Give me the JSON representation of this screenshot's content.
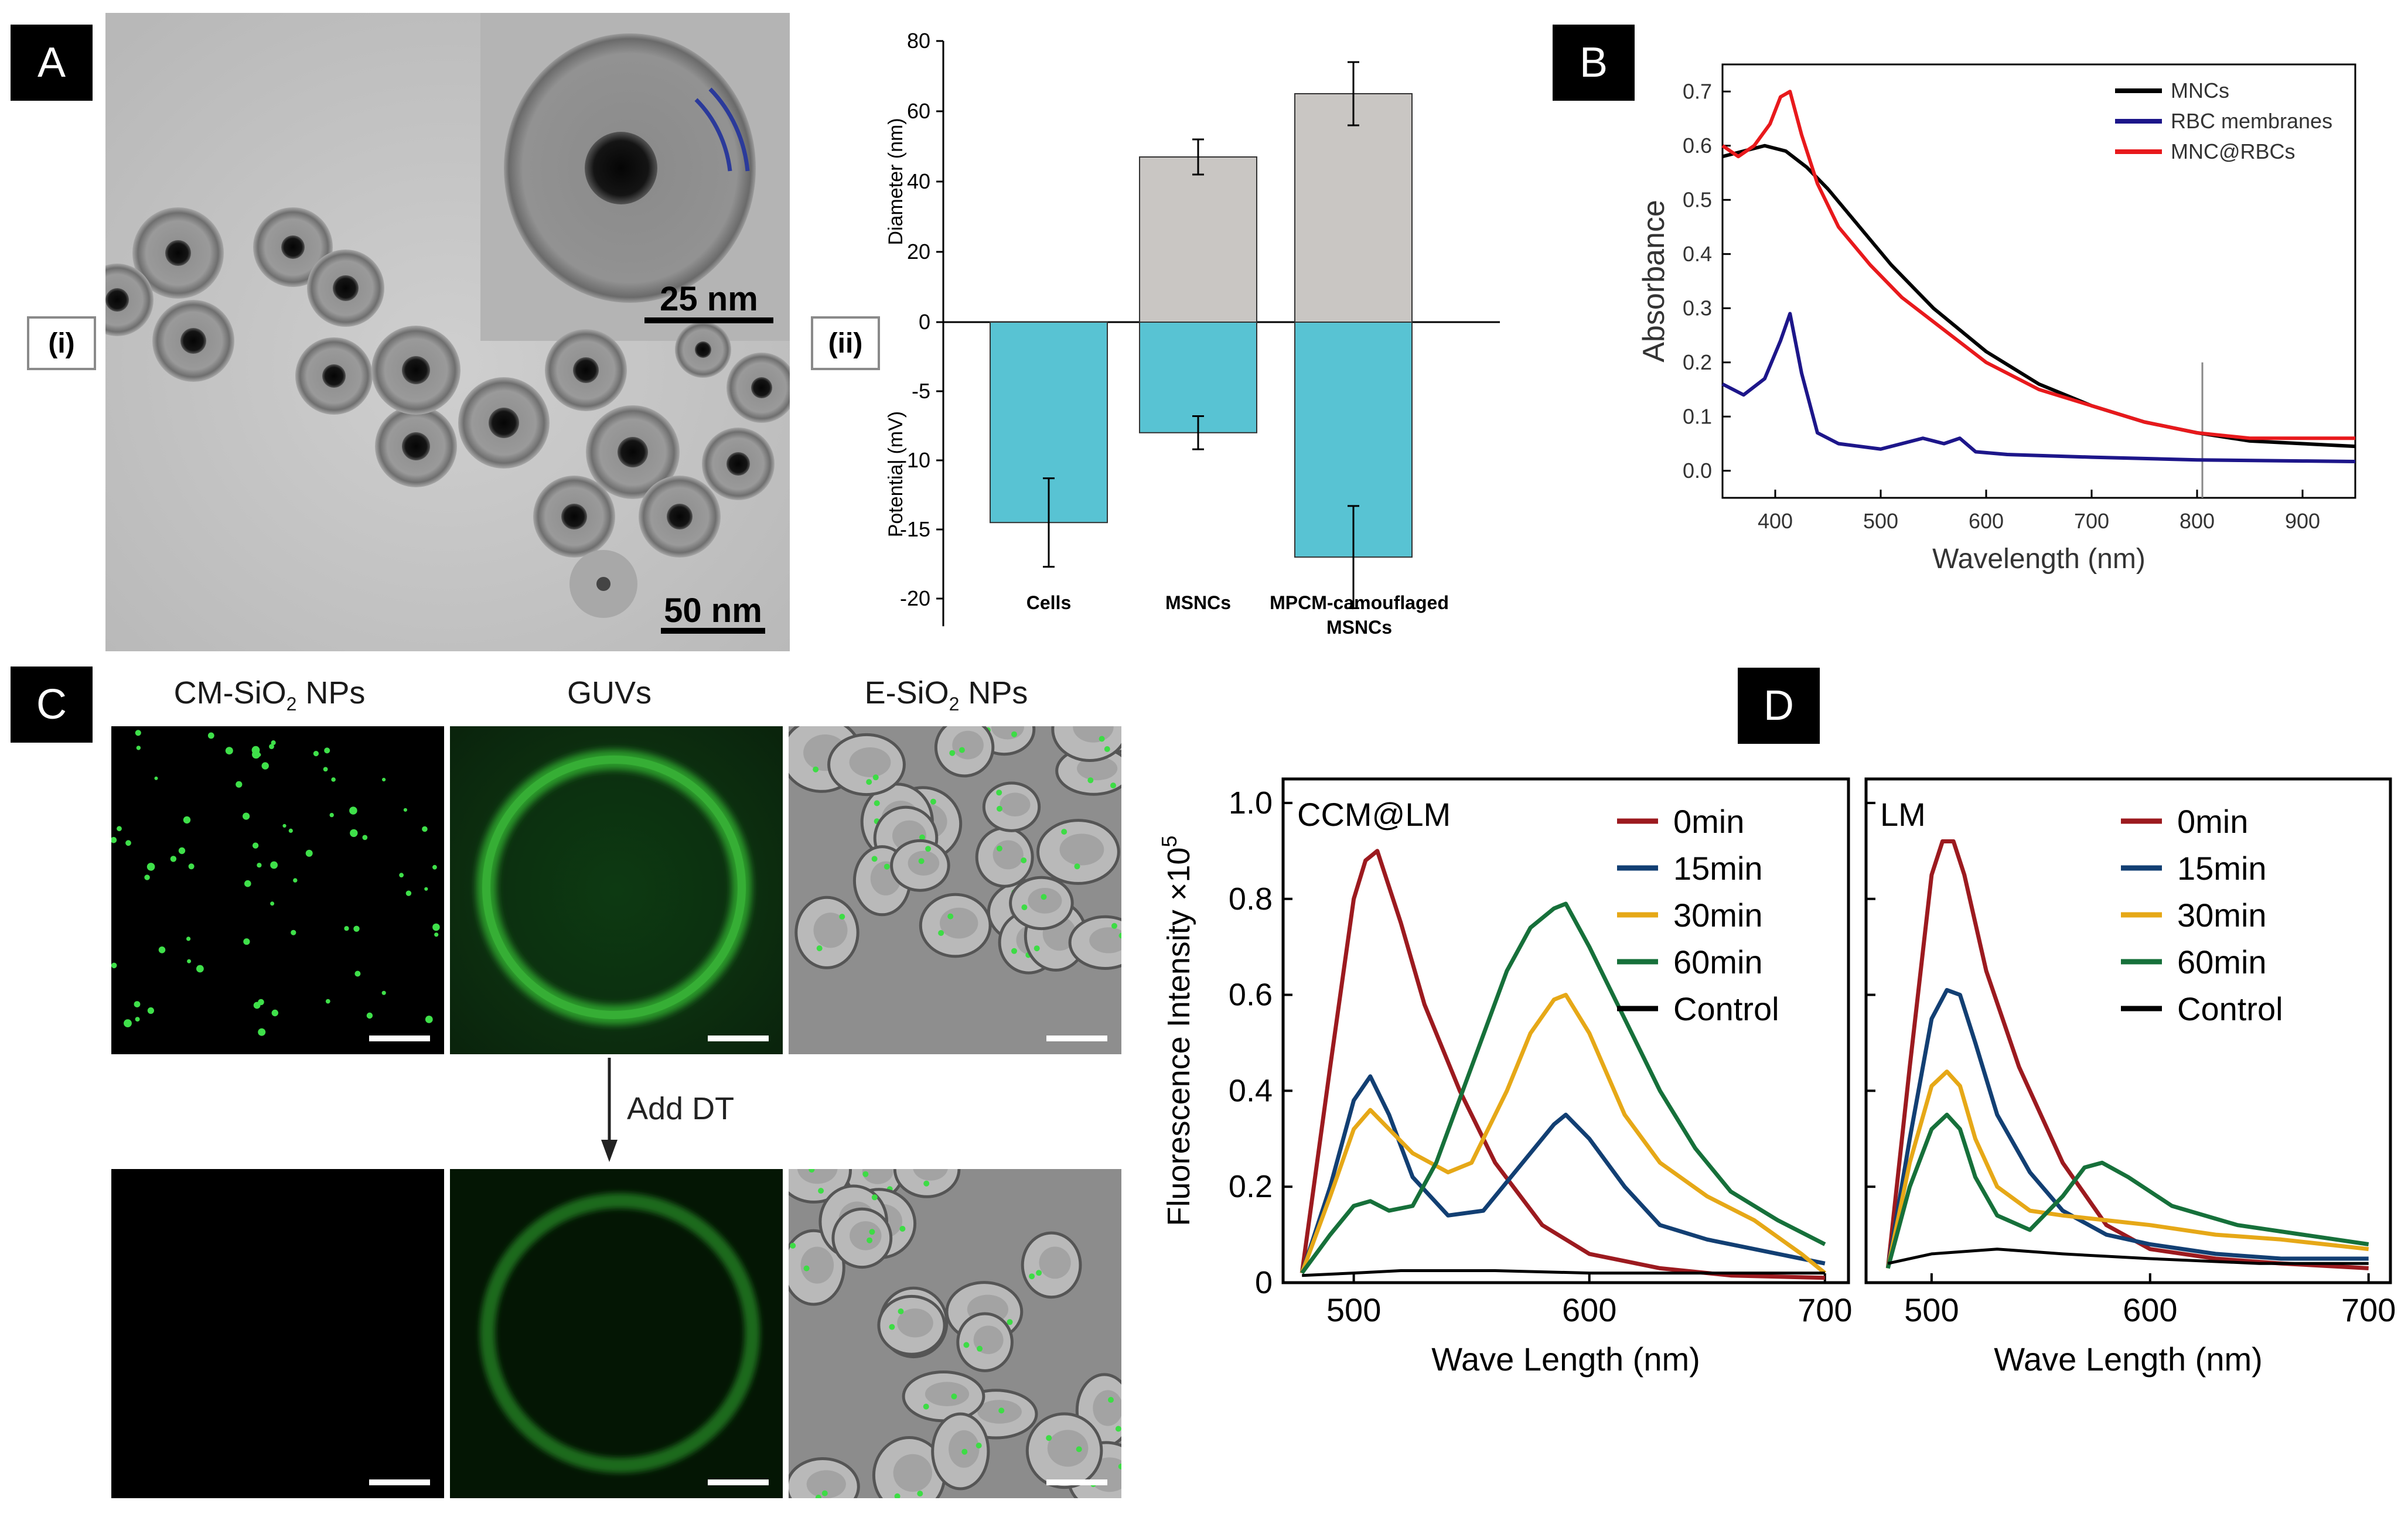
{
  "panels": {
    "A": {
      "letter": "A",
      "i_label": "(i)",
      "ii_label": "(ii)",
      "tem": {
        "scale_main": "50 nm",
        "scale_inset": "25 nm"
      },
      "chart": {
        "type": "bar",
        "ylabel_top": "Diameter (nm)",
        "ylabel_bottom": "Potential (mV)",
        "categories": [
          "Cells",
          "MSNCs",
          "MPCM-camouflaged",
          "MSNCs"
        ],
        "category_labels": [
          "Cells",
          "MSNCs",
          "MPCM-camouflaged MSNCs"
        ],
        "diameter": [
          null,
          47,
          65
        ],
        "diameter_err": [
          null,
          5,
          9
        ],
        "potential": [
          -14.5,
          -8,
          -17
        ],
        "potential_err": [
          3.2,
          1.2,
          3.7
        ],
        "yticks": [
          "80",
          "60",
          "40",
          "20",
          "0",
          "-5",
          "-10",
          "-15",
          "-20"
        ]
      }
    },
    "B": {
      "letter": "B",
      "chart": {
        "type": "line",
        "xlabel": "Wavelength (nm)",
        "ylabel": "Absorbance",
        "xlim": [
          350,
          950
        ],
        "ylim": [
          -0.05,
          0.75
        ],
        "xticks": [
          "400",
          "500",
          "600",
          "700",
          "800",
          "900"
        ],
        "yticks": [
          "0.0",
          "0.1",
          "0.2",
          "0.3",
          "0.4",
          "0.5",
          "0.6",
          "0.7"
        ],
        "legend": [
          "MNCs",
          "RBC membranes",
          "MNC@RBCs"
        ],
        "colors": {
          "MNCs": "#000000",
          "RBC membranes": "#1d168a",
          "MNC@RBCs": "#e8191c"
        },
        "series": [
          {
            "name": "MNCs",
            "x": [
              350,
              370,
              390,
              410,
              430,
              450,
              480,
              510,
              550,
              600,
              650,
              700,
              750,
              800,
              850,
              900,
              950
            ],
            "y": [
              0.58,
              0.59,
              0.6,
              0.59,
              0.56,
              0.52,
              0.45,
              0.38,
              0.3,
              0.22,
              0.16,
              0.12,
              0.09,
              0.07,
              0.055,
              0.05,
              0.045
            ]
          },
          {
            "name": "RBC membranes",
            "x": [
              350,
              370,
              390,
              405,
              414,
              425,
              440,
              460,
              500,
              540,
              560,
              575,
              590,
              620,
              700,
              800,
              900,
              950
            ],
            "y": [
              0.16,
              0.14,
              0.17,
              0.24,
              0.29,
              0.18,
              0.07,
              0.05,
              0.04,
              0.06,
              0.05,
              0.06,
              0.035,
              0.03,
              0.025,
              0.02,
              0.018,
              0.017
            ]
          },
          {
            "name": "MNC@RBCs",
            "x": [
              350,
              365,
              380,
              395,
              405,
              414,
              425,
              440,
              460,
              490,
              520,
              560,
              600,
              650,
              700,
              750,
              800,
              850,
              900,
              950
            ],
            "y": [
              0.6,
              0.58,
              0.6,
              0.64,
              0.69,
              0.7,
              0.62,
              0.53,
              0.45,
              0.38,
              0.32,
              0.26,
              0.2,
              0.15,
              0.12,
              0.09,
              0.07,
              0.06,
              0.06,
              0.06
            ]
          }
        ]
      }
    },
    "C": {
      "letter": "C",
      "titles": {
        "cm": "CM-SiO",
        "cm_sub": "2",
        "cm_tail": " NPs",
        "guv": "GUVs",
        "e": "E-SiO",
        "e_sub": "2",
        "e_tail": " NPs"
      },
      "arrow_label": "Add DT"
    },
    "D": {
      "letter": "D",
      "ylabel": "Fluorescence Intensity ×10",
      "ylabel_sup": "5",
      "xlabel": "Wave Length (nm)",
      "colors": {
        "0min": "#9c1a1f",
        "15min": "#123f73",
        "30min": "#e6a817",
        "60min": "#16703a",
        "Control": "#000000"
      },
      "legend": [
        "0min",
        "15min",
        "30min",
        "60min",
        "Control"
      ],
      "left": {
        "title": "CCM@LM",
        "xlim": [
          470,
          710
        ],
        "ylim": [
          0,
          1.05
        ],
        "xticks": [
          "500",
          "600",
          "700"
        ],
        "yticks": [
          "0",
          "0.2",
          "0.4",
          "0.6",
          "0.8",
          "1.0"
        ],
        "series": [
          {
            "name": "0min",
            "x": [
              478,
              490,
              500,
              505,
              510,
              520,
              530,
              545,
              560,
              580,
              600,
              630,
              660,
              700
            ],
            "y": [
              0.02,
              0.45,
              0.8,
              0.88,
              0.9,
              0.75,
              0.58,
              0.4,
              0.25,
              0.12,
              0.06,
              0.03,
              0.015,
              0.01
            ]
          },
          {
            "name": "15min",
            "x": [
              478,
              490,
              500,
              507,
              515,
              525,
              540,
              555,
              570,
              585,
              590,
              600,
              615,
              630,
              650,
              670,
              700
            ],
            "y": [
              0.02,
              0.2,
              0.38,
              0.43,
              0.35,
              0.22,
              0.14,
              0.15,
              0.24,
              0.33,
              0.35,
              0.3,
              0.2,
              0.12,
              0.09,
              0.07,
              0.04
            ]
          },
          {
            "name": "30min",
            "x": [
              478,
              490,
              500,
              507,
              515,
              525,
              540,
              550,
              565,
              575,
              585,
              590,
              600,
              615,
              630,
              650,
              670,
              690,
              700
            ],
            "y": [
              0.02,
              0.18,
              0.32,
              0.36,
              0.32,
              0.27,
              0.23,
              0.25,
              0.4,
              0.52,
              0.59,
              0.6,
              0.52,
              0.35,
              0.25,
              0.18,
              0.13,
              0.06,
              0.02
            ]
          },
          {
            "name": "60min",
            "x": [
              478,
              490,
              500,
              507,
              515,
              525,
              535,
              550,
              565,
              575,
              585,
              590,
              600,
              615,
              630,
              645,
              660,
              680,
              700
            ],
            "y": [
              0.02,
              0.1,
              0.16,
              0.17,
              0.15,
              0.16,
              0.25,
              0.45,
              0.65,
              0.74,
              0.78,
              0.79,
              0.7,
              0.55,
              0.4,
              0.28,
              0.19,
              0.13,
              0.08
            ]
          },
          {
            "name": "Control",
            "x": [
              478,
              500,
              520,
              540,
              560,
              600,
              650,
              700
            ],
            "y": [
              0.015,
              0.02,
              0.025,
              0.025,
              0.025,
              0.02,
              0.02,
              0.02
            ]
          }
        ]
      },
      "right": {
        "title": "LM",
        "xlim": [
          470,
          710
        ],
        "ylim": [
          0,
          1.05
        ],
        "xticks": [
          "500",
          "600",
          "700"
        ],
        "series": [
          {
            "name": "0min",
            "x": [
              480,
              490,
              500,
              505,
              510,
              515,
              525,
              540,
              560,
              580,
              600,
              630,
              660,
              700
            ],
            "y": [
              0.03,
              0.45,
              0.85,
              0.92,
              0.92,
              0.85,
              0.65,
              0.45,
              0.25,
              0.12,
              0.07,
              0.05,
              0.04,
              0.03
            ]
          },
          {
            "name": "15min",
            "x": [
              480,
              490,
              500,
              507,
              513,
              520,
              530,
              545,
              560,
              580,
              600,
              630,
              660,
              700
            ],
            "y": [
              0.03,
              0.3,
              0.55,
              0.61,
              0.6,
              0.5,
              0.35,
              0.23,
              0.15,
              0.1,
              0.08,
              0.06,
              0.05,
              0.05
            ]
          },
          {
            "name": "30min",
            "x": [
              480,
              490,
              500,
              507,
              513,
              520,
              530,
              545,
              560,
              580,
              600,
              630,
              660,
              700
            ],
            "y": [
              0.03,
              0.25,
              0.41,
              0.44,
              0.41,
              0.3,
              0.2,
              0.15,
              0.14,
              0.13,
              0.12,
              0.1,
              0.09,
              0.07
            ]
          },
          {
            "name": "60min",
            "x": [
              480,
              490,
              500,
              507,
              513,
              520,
              530,
              545,
              560,
              570,
              578,
              590,
              610,
              640,
              670,
              700
            ],
            "y": [
              0.03,
              0.2,
              0.32,
              0.35,
              0.32,
              0.22,
              0.14,
              0.11,
              0.18,
              0.24,
              0.25,
              0.22,
              0.16,
              0.12,
              0.1,
              0.08
            ]
          },
          {
            "name": "Control",
            "x": [
              480,
              500,
              530,
              560,
              600,
              650,
              700
            ],
            "y": [
              0.04,
              0.06,
              0.07,
              0.06,
              0.05,
              0.04,
              0.04
            ]
          }
        ]
      }
    }
  }
}
